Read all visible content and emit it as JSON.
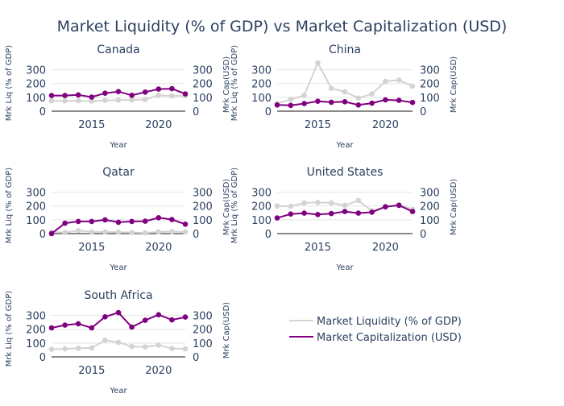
{
  "title": "Market Liquidity (% of GDP) vs Market Capitalization (USD)",
  "colors": {
    "liquidity": "#d3d3d3",
    "capitalization": "#800080",
    "text": "#2a3f5f",
    "grid": "#e5e5e5",
    "zeroline": "#444444"
  },
  "legend": {
    "placement": "lower-right",
    "items": [
      "Market Liquidity (% of GDP)",
      "Market Capitalization (USD)"
    ]
  },
  "chart_data": [
    {
      "type": "line",
      "title": "Canada",
      "xlabel": "Year",
      "ylabel_left": "Mrk Liq (% of GDP)",
      "ylabel_right": "Mrk Cap(USD)",
      "x": [
        2012,
        2013,
        2014,
        2015,
        2016,
        2017,
        2018,
        2019,
        2020,
        2021,
        2022
      ],
      "xticks": [
        "2015",
        "2020"
      ],
      "ylim": [
        0,
        350
      ],
      "yticks": [
        "0",
        "100",
        "200",
        "300"
      ],
      "series": [
        {
          "name": "Market Liquidity (% of GDP)",
          "axis": "left",
          "marker": false,
          "values": [
            75,
            74,
            75,
            73,
            78,
            80,
            82,
            84,
            115,
            110,
            112
          ]
        },
        {
          "name": "Market Capitalization (USD)",
          "axis": "right",
          "marker": true,
          "values": [
            113,
            113,
            118,
            102,
            130,
            142,
            115,
            138,
            160,
            163,
            125
          ]
        }
      ]
    },
    {
      "type": "line",
      "title": "China",
      "xlabel": "Year",
      "ylabel_left": "Mrk Liq (% of GDP)",
      "ylabel_right": "Mrk Cap(USD)",
      "x": [
        2012,
        2013,
        2014,
        2015,
        2016,
        2017,
        2018,
        2019,
        2020,
        2021,
        2022
      ],
      "xticks": [
        "2015",
        "2020"
      ],
      "ylim": [
        0,
        350
      ],
      "yticks": [
        "0",
        "100",
        "200",
        "300"
      ],
      "series": [
        {
          "name": "Market Liquidity (% of GDP)",
          "axis": "left",
          "marker": false,
          "values": [
            55,
            85,
            115,
            350,
            165,
            140,
            95,
            125,
            215,
            225,
            180
          ]
        },
        {
          "name": "Market Capitalization (USD)",
          "axis": "right",
          "marker": true,
          "values": [
            45,
            42,
            55,
            72,
            65,
            68,
            45,
            58,
            82,
            78,
            63
          ]
        }
      ]
    },
    {
      "type": "line",
      "title": "Qatar",
      "xlabel": "Year",
      "ylabel_left": "Mrk Liq (% of GDP)",
      "ylabel_right": "Mrk Cap(USD)",
      "x": [
        2012,
        2013,
        2014,
        2015,
        2016,
        2017,
        2018,
        2019,
        2020,
        2021,
        2022
      ],
      "xticks": [
        "2015",
        "2020"
      ],
      "ylim": [
        0,
        350
      ],
      "yticks": [
        "0",
        "100",
        "200",
        "300"
      ],
      "series": [
        {
          "name": "Market Liquidity (% of GDP)",
          "axis": "left",
          "marker": false,
          "values": [
            10,
            8,
            22,
            12,
            12,
            10,
            8,
            5,
            12,
            15,
            12
          ]
        },
        {
          "name": "Market Capitalization (USD)",
          "axis": "right",
          "marker": true,
          "values": [
            0,
            75,
            88,
            88,
            100,
            82,
            88,
            90,
            115,
            102,
            68
          ]
        }
      ]
    },
    {
      "type": "line",
      "title": "United States",
      "xlabel": "Year",
      "ylabel_left": "Mrk Liq (% of GDP)",
      "ylabel_right": "Mrk Cap(USD)",
      "x": [
        2012,
        2013,
        2014,
        2015,
        2016,
        2017,
        2018,
        2019,
        2020,
        2021,
        2022
      ],
      "xticks": [
        "2015",
        "2020"
      ],
      "ylim": [
        0,
        350
      ],
      "yticks": [
        "0",
        "100",
        "200",
        "300"
      ],
      "series": [
        {
          "name": "Market Liquidity (% of GDP)",
          "axis": "left",
          "marker": false,
          "values": [
            200,
            198,
            222,
            225,
            222,
            205,
            240,
            165,
            190,
            210,
            175
          ]
        },
        {
          "name": "Market Capitalization (USD)",
          "axis": "right",
          "marker": true,
          "values": [
            113,
            142,
            148,
            138,
            145,
            160,
            148,
            155,
            195,
            205,
            160
          ]
        }
      ]
    },
    {
      "type": "line",
      "title": "South Africa",
      "xlabel": "Year",
      "ylabel_left": "Mrk Liq (% of GDP)",
      "ylabel_right": "Mrk Cap(USD)",
      "x": [
        2012,
        2013,
        2014,
        2015,
        2016,
        2017,
        2018,
        2019,
        2020,
        2021,
        2022
      ],
      "xticks": [
        "2015",
        "2020"
      ],
      "ylim": [
        0,
        350
      ],
      "yticks": [
        "0",
        "100",
        "200",
        "300"
      ],
      "series": [
        {
          "name": "Market Liquidity (% of GDP)",
          "axis": "left",
          "marker": false,
          "values": [
            55,
            58,
            62,
            65,
            120,
            105,
            75,
            72,
            85,
            60,
            58
          ]
        },
        {
          "name": "Market Capitalization (USD)",
          "axis": "right",
          "marker": true,
          "values": [
            210,
            230,
            240,
            210,
            290,
            320,
            215,
            265,
            305,
            268,
            288
          ]
        }
      ]
    }
  ]
}
